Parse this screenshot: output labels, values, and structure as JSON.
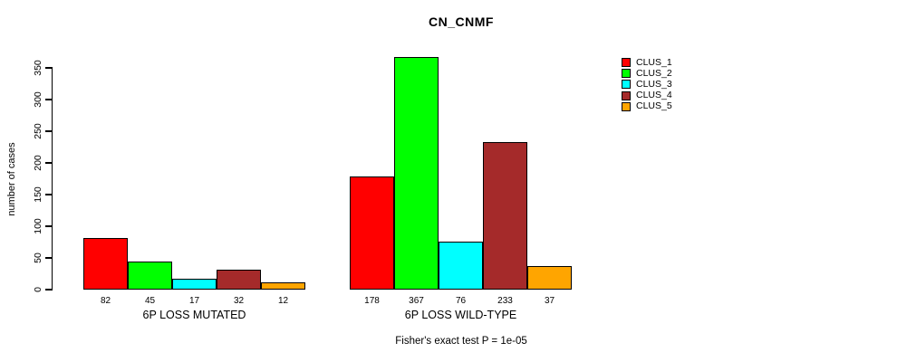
{
  "title": "CN_CNMF",
  "y_axis": {
    "label": "number of cases"
  },
  "footer": "Fisher's exact test P = 1e-05",
  "legend": {
    "position": "top-right",
    "entries": [
      {
        "label": "CLUS_1",
        "color": "#FF0000"
      },
      {
        "label": "CLUS_2",
        "color": "#00FF00"
      },
      {
        "label": "CLUS_3",
        "color": "#00FFFF"
      },
      {
        "label": "CLUS_4",
        "color": "#A52A2A"
      },
      {
        "label": "CLUS_5",
        "color": "#FFA500"
      }
    ]
  },
  "chart_data": {
    "type": "bar",
    "title": "CN_CNMF",
    "xlabel": "",
    "ylabel": "number of cases",
    "ylim": [
      0,
      350
    ],
    "yticks": [
      0,
      50,
      100,
      150,
      200,
      250,
      300,
      350
    ],
    "grid": false,
    "legend_position": "top-right",
    "series": [
      "CLUS_1",
      "CLUS_2",
      "CLUS_3",
      "CLUS_4",
      "CLUS_5"
    ],
    "series_colors": {
      "CLUS_1": "#FF0000",
      "CLUS_2": "#00FF00",
      "CLUS_3": "#00FFFF",
      "CLUS_4": "#A52A2A",
      "CLUS_5": "#FFA500"
    },
    "groups": [
      {
        "label": "6P LOSS MUTATED",
        "values": [
          82,
          45,
          17,
          32,
          12
        ]
      },
      {
        "label": "6P LOSS WILD-TYPE",
        "values": [
          178,
          367,
          76,
          233,
          37
        ]
      }
    ],
    "bar_value_labels": true,
    "annotation": "Fisher's exact test P = 1e-05"
  }
}
